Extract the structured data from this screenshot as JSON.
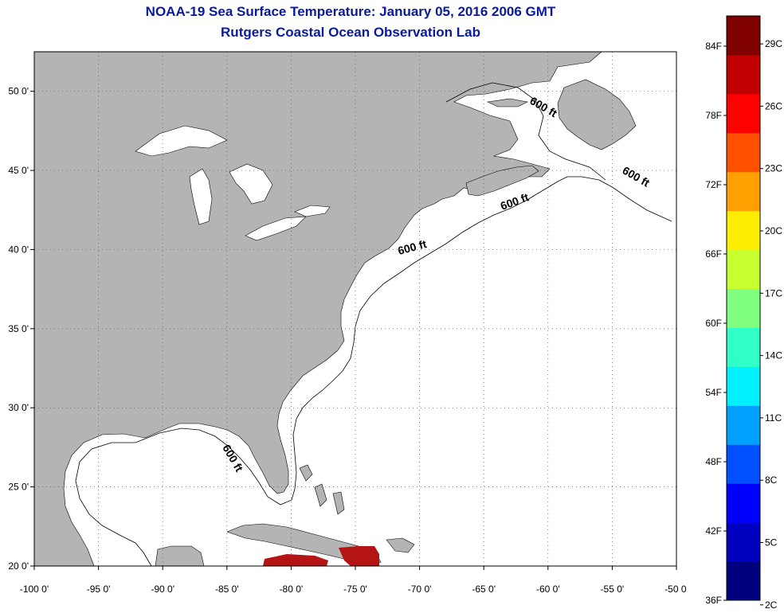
{
  "header": {
    "title": "NOAA-19 Sea Surface Temperature:  January 05, 2016 2006 GMT",
    "subtitle": "Rutgers Coastal Ocean Observation Lab"
  },
  "map": {
    "lon_range": [
      -100,
      -50
    ],
    "lat_range": [
      20,
      52.5
    ],
    "lon_ticks": [
      {
        "value": -100,
        "label": "-100 0'"
      },
      {
        "value": -95,
        "label": "-95 0'"
      },
      {
        "value": -90,
        "label": "-90 0'"
      },
      {
        "value": -85,
        "label": "-85 0'"
      },
      {
        "value": -80,
        "label": "-80 0'"
      },
      {
        "value": -75,
        "label": "-75 0'"
      },
      {
        "value": -70,
        "label": "-70 0'"
      },
      {
        "value": -65,
        "label": "-65 0'"
      },
      {
        "value": -60,
        "label": "-60 0'"
      },
      {
        "value": -55,
        "label": "-55 0'"
      },
      {
        "value": -50,
        "label": "-50 0'"
      }
    ],
    "lat_ticks": [
      {
        "value": 50,
        "label": "50 0'"
      },
      {
        "value": 45,
        "label": "45 0'"
      },
      {
        "value": 40,
        "label": "40 0'"
      },
      {
        "value": 35,
        "label": "35 0'"
      },
      {
        "value": 30,
        "label": "30 0'"
      },
      {
        "value": 25,
        "label": "25 0'"
      },
      {
        "value": 20,
        "label": "20 0'"
      }
    ],
    "grid": "dotted",
    "land_color": "#b4b4b4",
    "ocean_color": "#ffffff",
    "sst_color": "#b41414",
    "contour_labels": [
      {
        "text": "600 ft",
        "lon": -60.5,
        "lat": 48.8
      },
      {
        "text": "600 ft",
        "lon": -53.3,
        "lat": 44.4
      },
      {
        "text": "600 ft",
        "lon": -62.5,
        "lat": 42.8
      },
      {
        "text": "600 ft",
        "lon": -70.5,
        "lat": 39.9
      },
      {
        "text": "600 ft",
        "lon": -84.8,
        "lat": 26.7
      }
    ]
  },
  "colorbar": {
    "colors": [
      "#00007f",
      "#0000bf",
      "#0000ff",
      "#0050ff",
      "#00a0ff",
      "#00f0ff",
      "#30ffc8",
      "#80ff80",
      "#c8ff30",
      "#ffee00",
      "#ffa000",
      "#ff5000",
      "#ff0000",
      "#c00000",
      "#800000"
    ],
    "fahrenheit_labels": [
      {
        "value": 84,
        "label": "84F"
      },
      {
        "value": 78,
        "label": "78F"
      },
      {
        "value": 72,
        "label": "72F"
      },
      {
        "value": 66,
        "label": "66F"
      },
      {
        "value": 60,
        "label": "60F"
      },
      {
        "value": 54,
        "label": "54F"
      },
      {
        "value": 48,
        "label": "48F"
      },
      {
        "value": 42,
        "label": "42F"
      },
      {
        "value": 36,
        "label": "36F"
      }
    ],
    "celsius_labels": [
      {
        "value": 29,
        "label": "29C"
      },
      {
        "value": 26,
        "label": "26C"
      },
      {
        "value": 23,
        "label": "23C"
      },
      {
        "value": 20,
        "label": "20C"
      },
      {
        "value": 17,
        "label": "17C"
      },
      {
        "value": 14,
        "label": "14C"
      },
      {
        "value": 11,
        "label": "11C"
      },
      {
        "value": 8,
        "label": "8C"
      },
      {
        "value": 5,
        "label": "5C"
      },
      {
        "value": 2,
        "label": "2C"
      }
    ]
  }
}
